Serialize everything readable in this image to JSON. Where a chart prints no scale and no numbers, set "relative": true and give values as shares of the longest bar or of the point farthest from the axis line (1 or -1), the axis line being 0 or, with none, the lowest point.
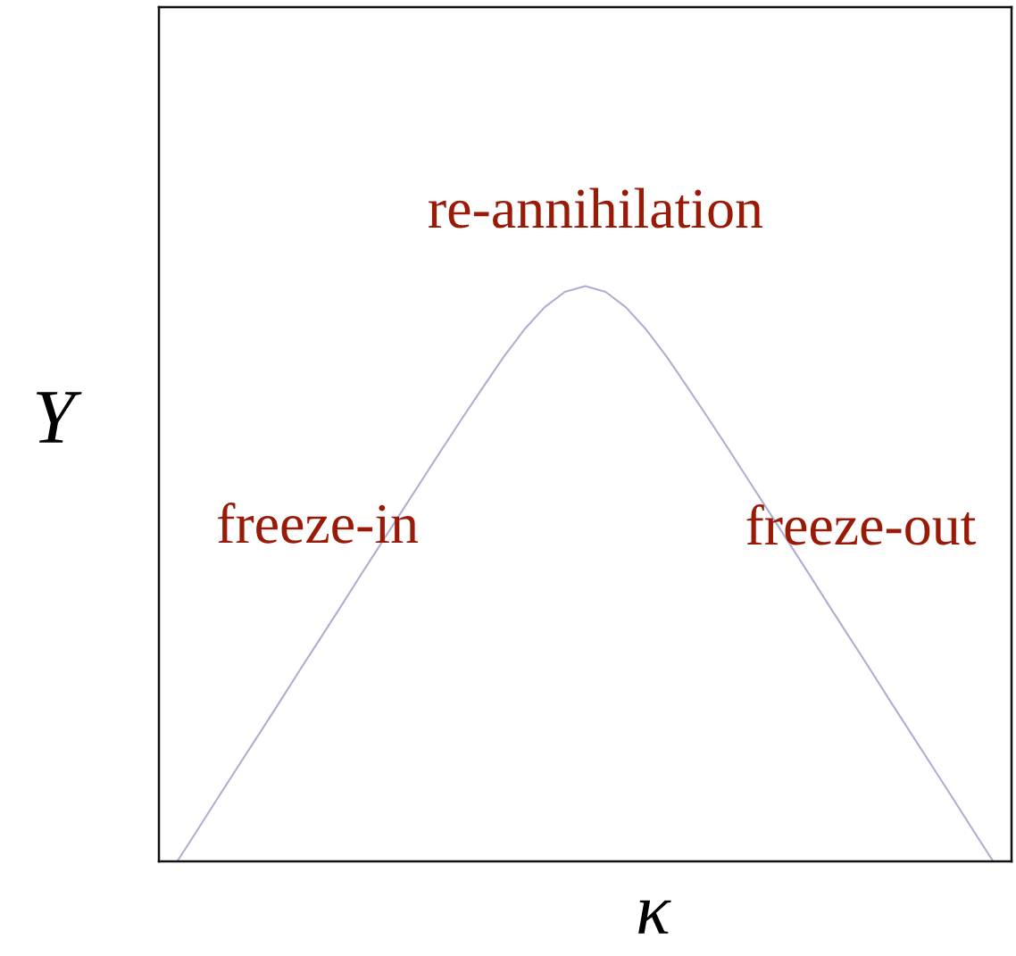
{
  "chart_data": {
    "type": "line",
    "xlabel": "κ",
    "ylabel": "Y",
    "annotations": [
      "re-annihilation",
      "freeze-in",
      "freeze-out"
    ],
    "categories": [
      null,
      null,
      null,
      null,
      null,
      null,
      null,
      null,
      null,
      null,
      null,
      null,
      null,
      null,
      null,
      null,
      null,
      null,
      null,
      null,
      null,
      null,
      null,
      null,
      null,
      null,
      null,
      null,
      null,
      null,
      null,
      null,
      null,
      null,
      null,
      null,
      null,
      null,
      null,
      null,
      null
    ],
    "series": [
      {
        "color": "#aeaed4",
        "values": [
          0,
          0.055,
          0.111,
          0.166,
          0.221,
          0.276,
          0.332,
          0.387,
          0.442,
          0.498,
          0.553,
          0.608,
          0.663,
          0.718,
          0.772,
          0.825,
          0.877,
          0.924,
          0.963,
          0.99,
          1.0,
          0.99,
          0.963,
          0.924,
          0.877,
          0.825,
          0.772,
          0.718,
          0.663,
          0.608,
          0.553,
          0.498,
          0.442,
          0.387,
          0.332,
          0.276,
          0.221,
          0.166,
          0.111,
          0.055,
          0
        ]
      }
    ],
    "relative": true
  }
}
